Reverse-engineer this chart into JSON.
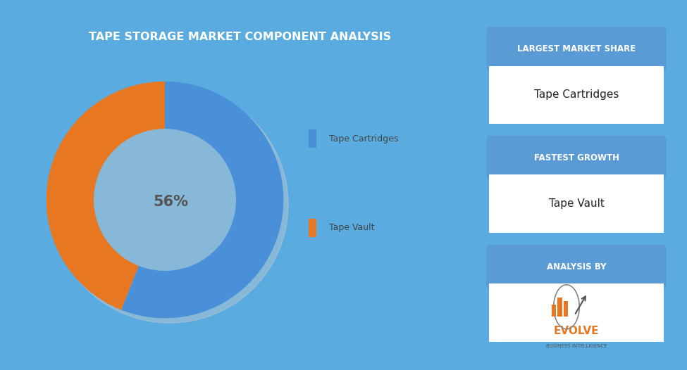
{
  "title": "TAPE STORAGE MARKET COMPONENT ANALYSIS",
  "pie_values": [
    56,
    44
  ],
  "pie_labels": [
    "Tape Cartridges",
    "Tape Vault"
  ],
  "pie_colors": [
    "#4a90d9",
    "#e87722"
  ],
  "center_text": "56%",
  "bg_color": "#5aace0",
  "chart_bg": "#ffffff",
  "title_bg": "#4a8fd4",
  "title_color": "#ffffff",
  "legend_label_color": "#444444",
  "right_panel_bg": "#5aace0",
  "box_header_bg": "#5b9bd5",
  "box_content_bg": "#ffffff",
  "box1_header": "LARGEST MARKET SHARE",
  "box1_content": "Tape Cartridges",
  "box2_header": "FASTEST GROWTH",
  "box2_content": "Tape Vault",
  "box3_header": "ANALYSIS BY",
  "evolve_color": "#e87722",
  "evolve_sub": "BUSINESS INTELLIGENCE"
}
